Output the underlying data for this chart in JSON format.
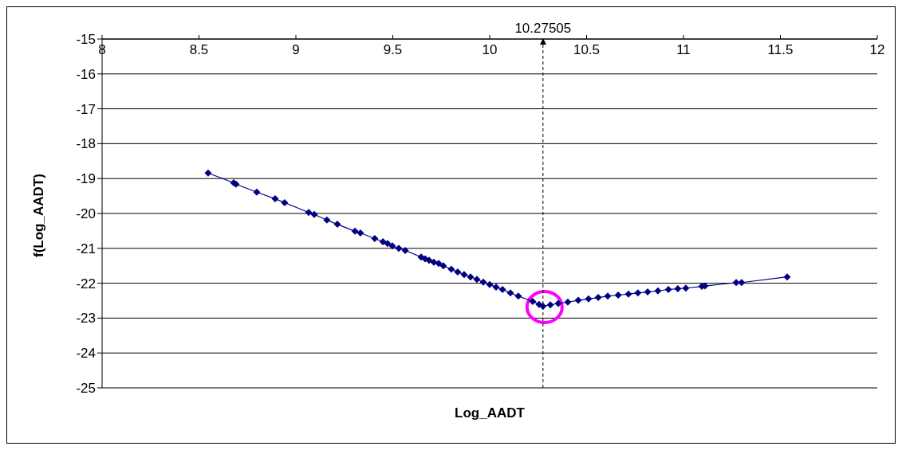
{
  "chart_data": {
    "type": "line",
    "xlabel": "Log_AADT",
    "ylabel": "f(Log_AADT)",
    "x": [
      8.547,
      8.679,
      8.691,
      8.798,
      8.893,
      8.942,
      9.066,
      9.095,
      9.16,
      9.214,
      9.305,
      9.333,
      9.407,
      9.449,
      9.473,
      9.498,
      9.531,
      9.564,
      9.646,
      9.667,
      9.687,
      9.712,
      9.737,
      9.761,
      9.802,
      9.835,
      9.868,
      9.901,
      9.934,
      9.967,
      10.0,
      10.033,
      10.066,
      10.107,
      10.148,
      10.222,
      10.255,
      10.275,
      10.313,
      10.354,
      10.403,
      10.457,
      10.51,
      10.56,
      10.609,
      10.663,
      10.716,
      10.765,
      10.815,
      10.868,
      10.922,
      10.971,
      11.012,
      11.095,
      11.111,
      11.272,
      11.3,
      11.535
    ],
    "series": [
      {
        "color": "#000080",
        "values": [
          -18.84,
          -19.12,
          -19.16,
          -19.39,
          -19.58,
          -19.69,
          -19.97,
          -20.03,
          -20.19,
          -20.31,
          -20.51,
          -20.56,
          -20.72,
          -20.81,
          -20.86,
          -20.93,
          -21.0,
          -21.06,
          -21.25,
          -21.3,
          -21.34,
          -21.4,
          -21.43,
          -21.5,
          -21.6,
          -21.68,
          -21.75,
          -21.82,
          -21.89,
          -21.97,
          -22.04,
          -22.11,
          -22.18,
          -22.28,
          -22.37,
          -22.52,
          -22.61,
          -22.66,
          -22.62,
          -22.58,
          -22.54,
          -22.49,
          -22.45,
          -22.41,
          -22.37,
          -22.34,
          -22.31,
          -22.28,
          -22.25,
          -22.22,
          -22.18,
          -22.16,
          -22.14,
          -22.09,
          -22.08,
          -21.98,
          -21.98,
          -21.82
        ]
      }
    ],
    "xlim": [
      8,
      12
    ],
    "xticks": [
      8,
      8.5,
      9,
      9.5,
      10,
      10.5,
      11,
      11.5,
      12
    ],
    "ylim": [
      -25,
      -15
    ],
    "yticks": [
      -25,
      -24,
      -23,
      -22,
      -21,
      -20,
      -19,
      -18,
      -17,
      -16,
      -15
    ],
    "ref_lines": [
      {
        "axis": "x",
        "value": 10.27505,
        "label": "10.27505",
        "color": "#000000",
        "line_style": "dashed"
      }
    ],
    "grid": "y",
    "legend": false,
    "marker": "diamond",
    "line_style": "solid"
  }
}
